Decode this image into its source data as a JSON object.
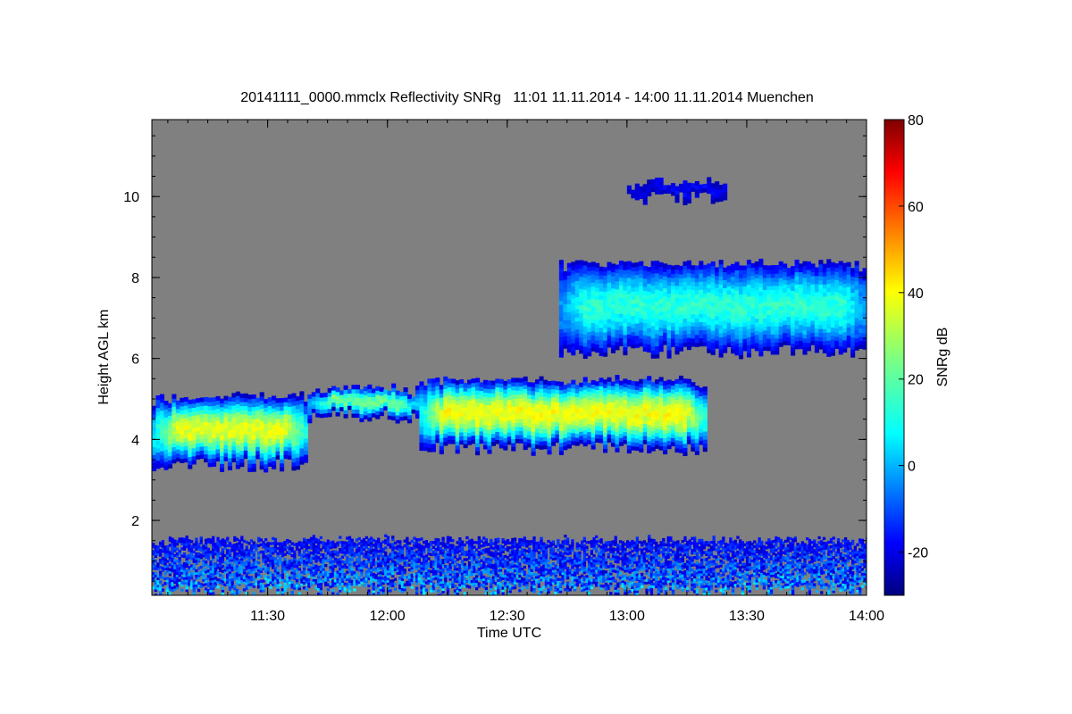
{
  "chart_data": {
    "type": "heatmap",
    "title": "20141111_0000.mmclx Reflectivity SNRg   11:01 11.11.2014 - 14:00 11.11.2014 Muenchen",
    "xlabel": "Time UTC",
    "ylabel": "Height AGL km",
    "xlim": [
      "11:01",
      "14:00"
    ],
    "ylim": [
      0.15,
      11.9
    ],
    "x_ticks": [
      "11:30",
      "12:00",
      "12:30",
      "13:00",
      "13:30",
      "14:00"
    ],
    "y_ticks": [
      "2",
      "4",
      "6",
      "8",
      "10"
    ],
    "background_color": "#808080",
    "colorbar": {
      "label": "SNRg dB",
      "range": [
        -30,
        80
      ],
      "ticks": [
        "-20",
        "0",
        "20",
        "40",
        "60",
        "80"
      ],
      "colormap": "jet"
    },
    "layers": [
      {
        "t_start": "11:01",
        "t_end": "11:40",
        "base_km": 3.3,
        "top_km": 5.1,
        "core_db": 36
      },
      {
        "t_start": "11:40",
        "t_end": "12:08",
        "base_km": 4.5,
        "top_km": 5.3,
        "core_db": 24
      },
      {
        "t_start": "12:08",
        "t_end": "13:20",
        "base_km": 3.7,
        "top_km": 5.5,
        "core_db": 38
      },
      {
        "t_start": "12:43",
        "t_end": "14:00",
        "base_km": 6.1,
        "top_km": 8.4,
        "core_db": 16
      },
      {
        "t_start": "13:00",
        "t_end": "13:25",
        "base_km": 9.9,
        "top_km": 10.4,
        "core_db": -18
      },
      {
        "t_start": "11:01",
        "t_end": "14:00",
        "base_km": 0.2,
        "top_km": 1.6,
        "core_db": -2
      }
    ]
  }
}
